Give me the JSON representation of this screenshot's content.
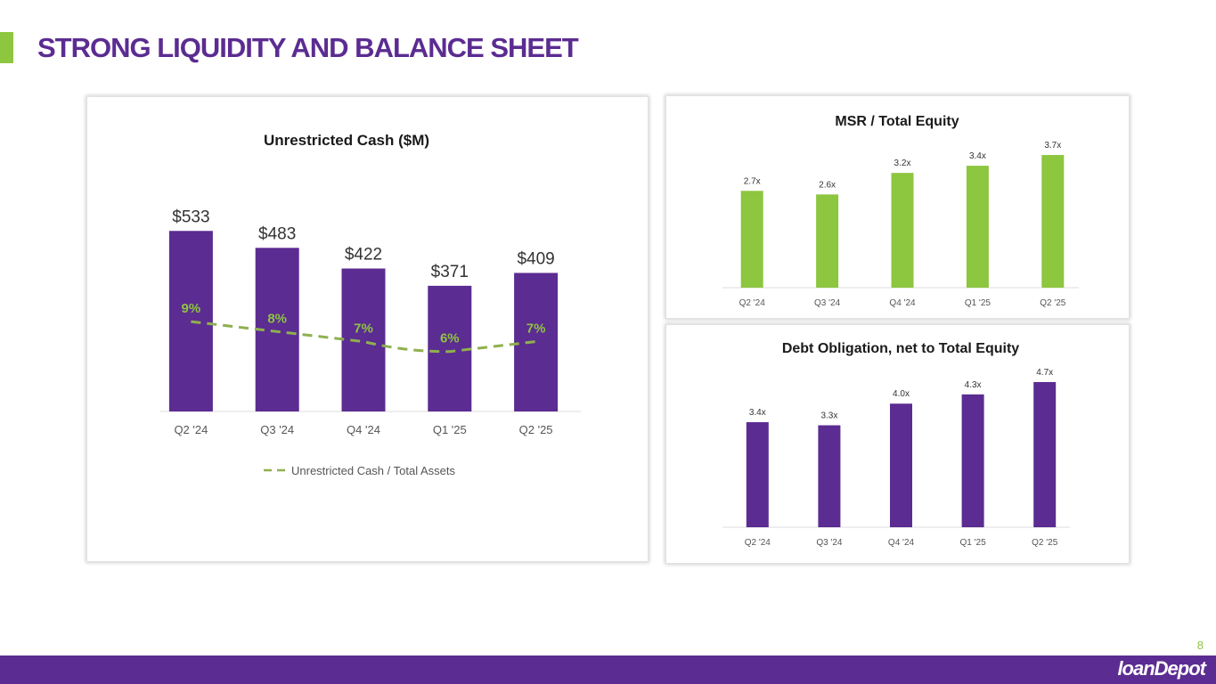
{
  "page": {
    "title": "STRONG LIQUIDITY AND BALANCE SHEET",
    "page_number": "8",
    "logo_text": "loanDepot"
  },
  "colors": {
    "purple": "#5b2c91",
    "green": "#8dc63f",
    "dash": "#8fb04f"
  },
  "chart_data": [
    {
      "id": "cash",
      "type": "bar",
      "title": "Unrestricted Cash ($M)",
      "categories": [
        "Q2 '24",
        "Q3 '24",
        "Q4 '24",
        "Q1 '25",
        "Q2 '25"
      ],
      "values": [
        533,
        483,
        422,
        371,
        409
      ],
      "value_labels": [
        "$533",
        "$483",
        "$422",
        "$371",
        "$409"
      ],
      "ylim": [
        0,
        560
      ],
      "series": [
        {
          "name": "Unrestricted Cash / Total Assets",
          "type": "line",
          "style": "dashed",
          "values": [
            9,
            8,
            7,
            6,
            7
          ],
          "labels": [
            "9%",
            "8%",
            "7%",
            "6%",
            "7%"
          ],
          "ylim": [
            0,
            19
          ]
        }
      ],
      "legend": "bottom",
      "legend_label": "Unrestricted Cash / Total Assets"
    },
    {
      "id": "msr",
      "type": "bar",
      "title": "MSR / Total Equity",
      "categories": [
        "Q2 '24",
        "Q3 '24",
        "Q4 '24",
        "Q1 '25",
        "Q2 '25"
      ],
      "values": [
        2.7,
        2.6,
        3.2,
        3.4,
        3.7
      ],
      "value_labels": [
        "2.7x",
        "2.6x",
        "3.2x",
        "3.4x",
        "3.7x"
      ],
      "ylim": [
        0,
        3.8
      ]
    },
    {
      "id": "debt",
      "type": "bar",
      "title": "Debt Obligation, net to Total Equity",
      "categories": [
        "Q2 '24",
        "Q3 '24",
        "Q4 '24",
        "Q1 '25",
        "Q2 '25"
      ],
      "values": [
        3.4,
        3.3,
        4.0,
        4.3,
        4.7
      ],
      "value_labels": [
        "3.4x",
        "3.3x",
        "4.0x",
        "4.3x",
        "4.7x"
      ],
      "ylim": [
        0,
        4.9
      ]
    }
  ]
}
